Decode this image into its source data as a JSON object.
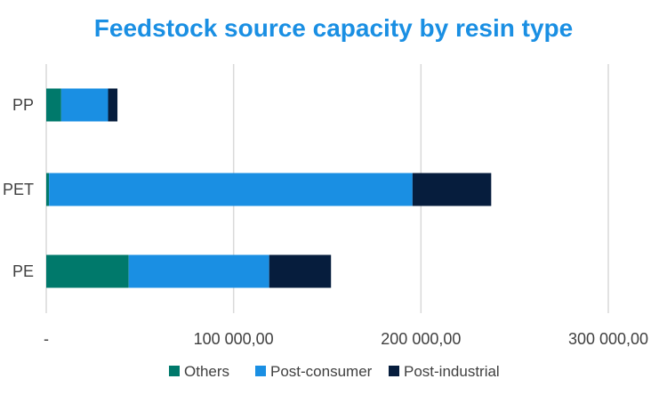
{
  "chart_data": {
    "type": "bar",
    "orientation": "horizontal",
    "stacked": true,
    "title": "Feedstock source capacity by resin type",
    "xlabel": "",
    "ylabel": "",
    "categories": [
      "PP",
      "PET",
      "PE"
    ],
    "series": [
      {
        "name": "Others",
        "color": "#00796b",
        "values": [
          8000,
          1500,
          44000
        ]
      },
      {
        "name": "Post-consumer",
        "color": "#1a8fe3",
        "values": [
          25000,
          194000,
          75000
        ]
      },
      {
        "name": "Post-industrial",
        "color": "#061d3d",
        "values": [
          5000,
          42000,
          33000
        ]
      }
    ],
    "xlim": [
      0,
      300000
    ],
    "x_ticks": [
      {
        "value": 0,
        "label": "-"
      },
      {
        "value": 100000,
        "label": "100 000,00"
      },
      {
        "value": 200000,
        "label": "200 000,00"
      },
      {
        "value": 300000,
        "label": "300 000,00"
      }
    ],
    "grid": true,
    "legend_position": "bottom"
  }
}
